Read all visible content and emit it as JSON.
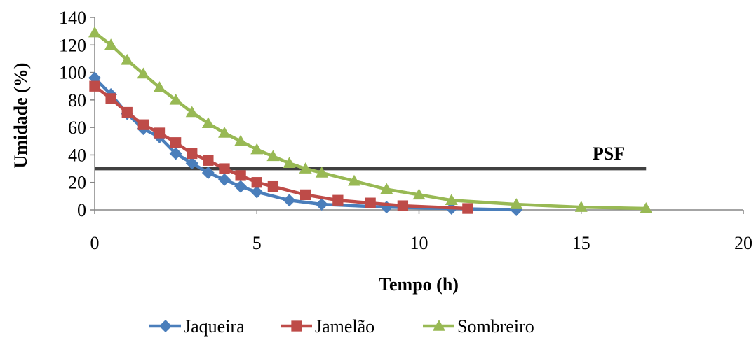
{
  "chart_data": {
    "type": "line",
    "xlabel": "Tempo (h)",
    "ylabel": "Umidade (%)",
    "xlim": [
      0,
      20
    ],
    "ylim": [
      0,
      140
    ],
    "x_ticks": [
      "0",
      "5",
      "10",
      "15",
      "20"
    ],
    "y_ticks": [
      "0",
      "20",
      "40",
      "60",
      "80",
      "100",
      "120",
      "140"
    ],
    "grid": false,
    "legend_position": "bottom",
    "series": [
      {
        "name": "Jaqueira",
        "color": "#4a7ebb",
        "marker": "diamond",
        "points": [
          [
            0,
            96
          ],
          [
            0.5,
            84
          ],
          [
            1,
            70
          ],
          [
            1.5,
            59
          ],
          [
            2,
            53
          ],
          [
            2.5,
            41
          ],
          [
            3,
            34
          ],
          [
            3.5,
            27
          ],
          [
            4,
            22
          ],
          [
            4.5,
            17
          ],
          [
            5,
            13
          ],
          [
            6,
            7
          ],
          [
            7,
            4
          ],
          [
            9,
            2
          ],
          [
            11,
            1
          ],
          [
            13,
            0
          ]
        ]
      },
      {
        "name": "Jamelão",
        "color": "#be4b48",
        "marker": "square",
        "points": [
          [
            0,
            90
          ],
          [
            0.5,
            81
          ],
          [
            1,
            71
          ],
          [
            1.5,
            62
          ],
          [
            2,
            56
          ],
          [
            2.5,
            49
          ],
          [
            3,
            41
          ],
          [
            3.5,
            36
          ],
          [
            4,
            30
          ],
          [
            4.5,
            25
          ],
          [
            5,
            20
          ],
          [
            5.5,
            17
          ],
          [
            6.5,
            11
          ],
          [
            7.5,
            7
          ],
          [
            8.5,
            5
          ],
          [
            9.5,
            3
          ],
          [
            11.5,
            1
          ]
        ]
      },
      {
        "name": "Sombreiro",
        "color": "#98b954",
        "marker": "triangle",
        "points": [
          [
            0,
            129
          ],
          [
            0.5,
            120
          ],
          [
            1,
            109
          ],
          [
            1.5,
            99
          ],
          [
            2,
            89
          ],
          [
            2.5,
            80
          ],
          [
            3,
            71
          ],
          [
            3.5,
            63
          ],
          [
            4,
            56
          ],
          [
            4.5,
            50
          ],
          [
            5,
            44
          ],
          [
            5.5,
            39
          ],
          [
            6,
            34
          ],
          [
            6.5,
            30
          ],
          [
            7,
            27
          ],
          [
            8,
            21
          ],
          [
            9,
            15
          ],
          [
            10,
            11
          ],
          [
            11,
            7
          ],
          [
            13,
            4
          ],
          [
            15,
            2
          ],
          [
            17,
            1
          ]
        ]
      }
    ],
    "reference_line": {
      "label": "PSF",
      "y": 30,
      "x_start": 0,
      "x_end": 17,
      "color": "#404040"
    }
  }
}
